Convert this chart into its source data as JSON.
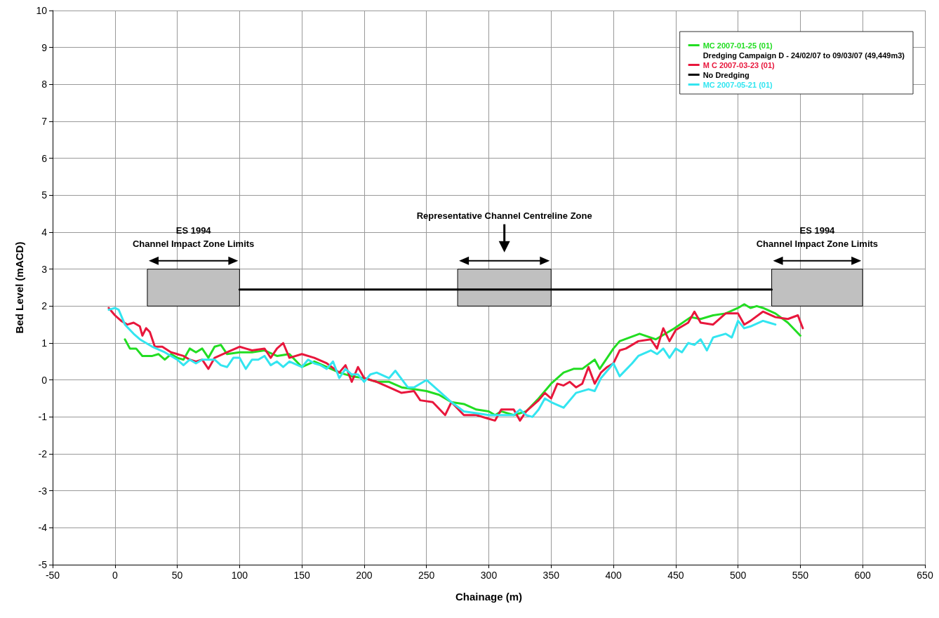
{
  "chart_data": {
    "type": "line",
    "xlabel": "Chainage (m)",
    "ylabel": "Bed Level (mACD)",
    "xlim": [
      -50,
      650
    ],
    "xticks": [
      -50,
      0,
      50,
      100,
      150,
      200,
      250,
      300,
      350,
      400,
      450,
      500,
      550,
      600,
      650
    ],
    "ylim": [
      -5,
      10
    ],
    "yticks": [
      -5,
      -4,
      -3,
      -2,
      -1,
      0,
      1,
      2,
      3,
      4,
      5,
      6,
      7,
      8,
      9,
      10
    ],
    "grid": true,
    "legend": "top right",
    "marker": "none",
    "line_style": "solid",
    "series": [
      {
        "name": "MC 2007-01-25 (01)",
        "color": "#22dd22",
        "x": [
          8,
          12,
          17,
          22,
          30,
          35,
          40,
          45,
          50,
          55,
          60,
          65,
          70,
          75,
          80,
          85,
          90,
          100,
          110,
          120,
          130,
          140,
          150,
          160,
          170,
          180,
          190,
          200,
          210,
          220,
          230,
          240,
          250,
          260,
          270,
          280,
          290,
          300,
          305,
          310,
          320,
          330,
          340,
          350,
          360,
          368,
          375,
          385,
          389,
          400,
          405,
          421,
          434,
          449,
          462,
          470,
          480,
          490,
          500,
          505,
          510,
          515,
          520,
          530,
          540,
          550
        ],
        "values": [
          1.1,
          0.85,
          0.85,
          0.65,
          0.65,
          0.7,
          0.55,
          0.7,
          0.6,
          0.55,
          0.85,
          0.75,
          0.85,
          0.6,
          0.9,
          0.95,
          0.7,
          0.75,
          0.75,
          0.8,
          0.65,
          0.7,
          0.35,
          0.5,
          0.35,
          0.2,
          0.1,
          0.05,
          -0.05,
          -0.05,
          -0.2,
          -0.25,
          -0.3,
          -0.4,
          -0.6,
          -0.65,
          -0.8,
          -0.85,
          -0.95,
          -0.85,
          -0.95,
          -0.85,
          -0.5,
          -0.1,
          0.2,
          0.3,
          0.3,
          0.55,
          0.3,
          0.85,
          1.05,
          1.25,
          1.1,
          1.4,
          1.7,
          1.65,
          1.75,
          1.8,
          1.95,
          2.05,
          1.95,
          2.0,
          1.95,
          1.8,
          1.55,
          1.2
        ]
      },
      {
        "name": "Dredging Campaign D - 24/02/07 to 09/03/07 (49,449m3)",
        "color": "#000000"
      },
      {
        "name": "M C 2007-03-23 (01)",
        "color": "#e8173c",
        "x": [
          -5,
          0,
          5,
          10,
          15,
          20,
          22,
          25,
          28,
          32,
          38,
          45,
          50,
          55,
          60,
          65,
          70,
          75,
          80,
          90,
          100,
          105,
          110,
          120,
          125,
          130,
          135,
          140,
          150,
          160,
          170,
          180,
          185,
          190,
          195,
          200,
          210,
          220,
          230,
          240,
          245,
          255,
          265,
          270,
          280,
          290,
          300,
          305,
          310,
          320,
          325,
          330,
          340,
          345,
          350,
          355,
          360,
          365,
          370,
          375,
          380,
          385,
          390,
          395,
          400,
          405,
          410,
          420,
          430,
          435,
          440,
          445,
          450,
          460,
          465,
          470,
          480,
          490,
          500,
          505,
          510,
          520,
          530,
          540,
          548,
          552
        ],
        "values": [
          1.95,
          1.75,
          1.6,
          1.5,
          1.55,
          1.45,
          1.2,
          1.4,
          1.3,
          0.9,
          0.9,
          0.75,
          0.7,
          0.65,
          0.55,
          0.5,
          0.55,
          0.3,
          0.6,
          0.75,
          0.9,
          0.85,
          0.8,
          0.85,
          0.6,
          0.85,
          1.0,
          0.6,
          0.7,
          0.6,
          0.45,
          0.2,
          0.4,
          -0.05,
          0.35,
          0.05,
          -0.05,
          -0.2,
          -0.35,
          -0.3,
          -0.55,
          -0.6,
          -0.95,
          -0.6,
          -0.95,
          -0.95,
          -1.05,
          -1.1,
          -0.8,
          -0.8,
          -1.1,
          -0.85,
          -0.55,
          -0.35,
          -0.5,
          -0.1,
          -0.15,
          -0.05,
          -0.2,
          -0.1,
          0.35,
          -0.1,
          0.2,
          0.35,
          0.45,
          0.8,
          0.85,
          1.05,
          1.1,
          0.85,
          1.4,
          1.05,
          1.35,
          1.55,
          1.85,
          1.55,
          1.5,
          1.8,
          1.8,
          1.5,
          1.6,
          1.85,
          1.7,
          1.65,
          1.75,
          1.4
        ]
      },
      {
        "name": "No Dredging",
        "color": "#000000",
        "x": [
          100,
          527
        ],
        "values": [
          2.45,
          2.45
        ]
      },
      {
        "name": "MC 2007-05-21 (01)",
        "color": "#33e5f0",
        "x": [
          -5,
          0,
          3,
          8,
          15,
          20,
          30,
          40,
          45,
          50,
          55,
          60,
          65,
          70,
          80,
          85,
          90,
          95,
          100,
          105,
          110,
          115,
          120,
          125,
          130,
          135,
          140,
          150,
          155,
          160,
          165,
          170,
          175,
          180,
          185,
          190,
          195,
          200,
          205,
          210,
          220,
          225,
          235,
          240,
          250,
          260,
          270,
          280,
          290,
          300,
          310,
          320,
          325,
          330,
          335,
          340,
          345,
          350,
          360,
          370,
          380,
          385,
          390,
          400,
          405,
          415,
          420,
          430,
          435,
          440,
          445,
          450,
          455,
          460,
          465,
          470,
          475,
          480,
          490,
          495,
          500,
          505,
          510,
          520,
          525,
          530
        ],
        "values": [
          1.9,
          1.95,
          1.9,
          1.5,
          1.25,
          1.1,
          0.9,
          0.75,
          0.65,
          0.55,
          0.4,
          0.55,
          0.45,
          0.55,
          0.55,
          0.4,
          0.35,
          0.6,
          0.6,
          0.3,
          0.55,
          0.55,
          0.65,
          0.4,
          0.5,
          0.35,
          0.5,
          0.35,
          0.55,
          0.45,
          0.4,
          0.3,
          0.5,
          0.05,
          0.3,
          0.15,
          0.15,
          -0.05,
          0.15,
          0.2,
          0.05,
          0.25,
          -0.2,
          -0.2,
          0.0,
          -0.3,
          -0.6,
          -0.85,
          -0.9,
          -0.95,
          -0.95,
          -0.95,
          -0.8,
          -0.95,
          -1.0,
          -0.8,
          -0.5,
          -0.6,
          -0.75,
          -0.35,
          -0.25,
          -0.3,
          0.05,
          0.45,
          0.1,
          0.45,
          0.65,
          0.8,
          0.7,
          0.85,
          0.6,
          0.85,
          0.75,
          1.0,
          0.95,
          1.1,
          0.8,
          1.15,
          1.25,
          1.15,
          1.6,
          1.4,
          1.45,
          1.6,
          1.55,
          1.5
        ]
      }
    ],
    "bands": [
      {
        "axis": "x",
        "from": 26,
        "to": 100,
        "label": "ES 1994\nChannel Impact Zone Limits",
        "color": "#c0c0c0"
      },
      {
        "axis": "x",
        "from": 275,
        "to": 350,
        "color": "#c0c0c0"
      },
      {
        "axis": "x",
        "from": 527,
        "to": 600,
        "label": "ES 1994\nChannel Impact Zone Limits",
        "color": "#c0c0c0"
      }
    ],
    "annotations": [
      "Representative Channel Centreline Zone"
    ]
  }
}
